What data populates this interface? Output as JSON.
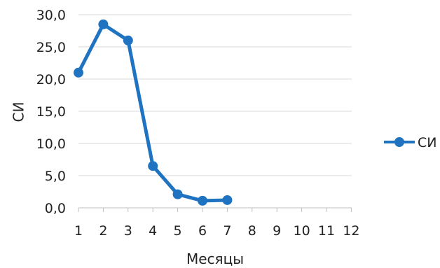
{
  "chart_data": {
    "type": "line",
    "x": [
      1,
      2,
      3,
      4,
      5,
      6,
      7
    ],
    "x_ticks": [
      "1",
      "2",
      "3",
      "4",
      "5",
      "6",
      "7",
      "8",
      "9",
      "10",
      "11",
      "12"
    ],
    "y_ticks": [
      "0,0",
      "5,0",
      "10,0",
      "15,0",
      "20,0",
      "25,0",
      "30,0"
    ],
    "series": [
      {
        "name": "СИ",
        "values": [
          21.0,
          28.5,
          26.0,
          6.5,
          2.1,
          1.1,
          1.2
        ]
      }
    ],
    "xlabel": "Месяцы",
    "ylabel": "СИ",
    "xlim": [
      1,
      12
    ],
    "ylim": [
      0,
      30
    ],
    "grid": "horizontal",
    "legend_position": "right",
    "colors": {
      "series": "#1F73C0",
      "grid": "#D9D9D9",
      "axis": "#BFBFBF"
    }
  }
}
